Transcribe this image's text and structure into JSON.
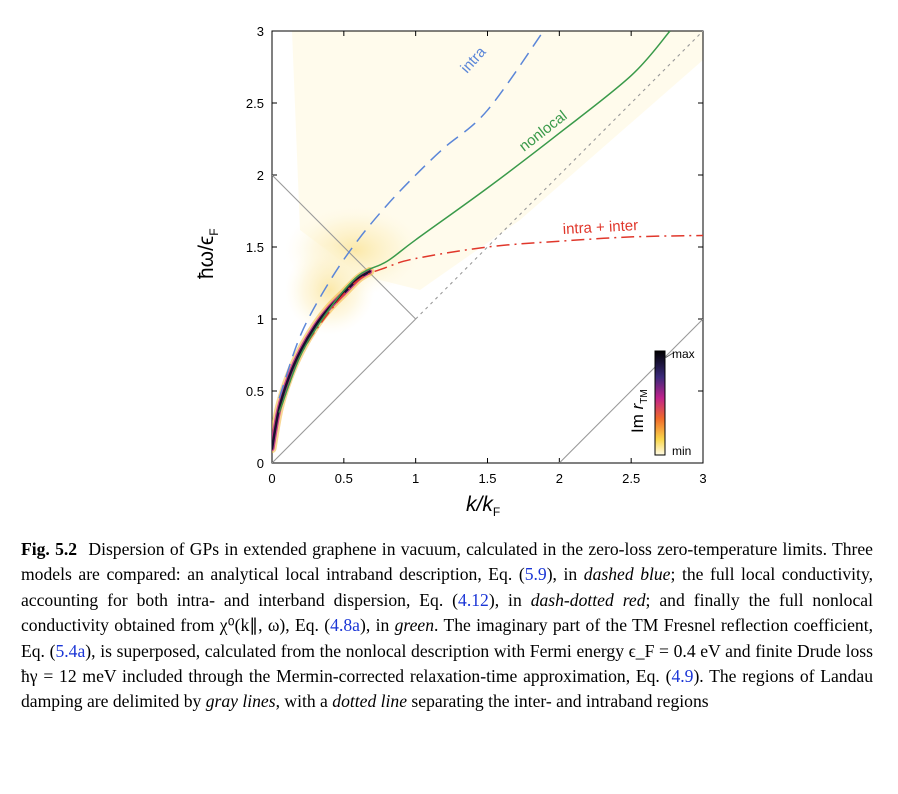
{
  "figure": {
    "axes": {
      "xlabel": "k/k_F",
      "ylabel": "ħω/ϵ_F",
      "xlim": [
        0,
        3
      ],
      "ylim": [
        0,
        3
      ],
      "xticks": [
        "0",
        "0.5",
        "1",
        "1.5",
        "2",
        "2.5",
        "3"
      ],
      "yticks": [
        "0",
        "0.5",
        "1",
        "1.5",
        "2",
        "2.5",
        "3"
      ]
    },
    "curve_labels": {
      "intra": "intra",
      "nonlocal": "nonlocal",
      "intra_inter": "intra + inter"
    },
    "colorbar": {
      "label": "Im r_TM",
      "max_label": "max",
      "min_label": "min"
    },
    "colors": {
      "intra": "#5b86d8",
      "nonlocal": "#3a9a4a",
      "intra_inter": "#e0372b",
      "gray": "#9a9a9a"
    }
  },
  "chart_data": {
    "type": "line",
    "xlabel": "k/k_F",
    "ylabel": "ħω/ϵ_F",
    "xlim": [
      0,
      3
    ],
    "ylim": [
      0,
      3
    ],
    "series": [
      {
        "name": "intra",
        "style": "dashed",
        "color": "#5b86d8",
        "x": [
          0.05,
          0.2,
          0.4,
          0.6,
          0.8,
          1.0,
          1.2,
          1.5,
          1.89
        ],
        "y": [
          0.45,
          0.89,
          1.26,
          1.55,
          1.79,
          2.0,
          2.19,
          2.45,
          3.0
        ]
      },
      {
        "name": "intra + inter",
        "style": "dash-dotted",
        "color": "#e0372b",
        "x": [
          0.05,
          0.2,
          0.4,
          0.6,
          0.8,
          1.0,
          1.5,
          2.0,
          2.5,
          3.0
        ],
        "y": [
          0.35,
          0.75,
          1.05,
          1.27,
          1.36,
          1.42,
          1.5,
          1.54,
          1.57,
          1.58
        ]
      },
      {
        "name": "nonlocal",
        "style": "solid",
        "color": "#3a9a4a",
        "x": [
          0.05,
          0.2,
          0.4,
          0.6,
          0.8,
          1.0,
          1.5,
          2.0,
          2.5,
          2.77
        ],
        "y": [
          0.35,
          0.75,
          1.07,
          1.3,
          1.4,
          1.55,
          1.91,
          2.29,
          2.69,
          3.0
        ]
      },
      {
        "name": "ħω = ħv_F k (dotted)",
        "style": "dotted",
        "color": "#9a9a9a",
        "x": [
          1,
          3
        ],
        "y": [
          1,
          3
        ]
      },
      {
        "name": "ħω = ħv_F k (solid)",
        "style": "solid",
        "color": "#9a9a9a",
        "x": [
          0,
          1
        ],
        "y": [
          0,
          1
        ]
      },
      {
        "name": "ħω = 2ϵ_F − ħv_F k",
        "style": "solid",
        "color": "#9a9a9a",
        "x": [
          0,
          1
        ],
        "y": [
          2,
          1
        ]
      },
      {
        "name": "ħω = ħv_F k − 2ϵ_F",
        "style": "solid",
        "color": "#9a9a9a",
        "x": [
          2,
          3
        ],
        "y": [
          0,
          1
        ]
      }
    ],
    "heatmap": "Im r_TM (nonlocal, min → max)"
  },
  "caption": {
    "fig_number": "Fig. 5.2",
    "s1": "Dispersion of GPs in extended graphene in vacuum, calculated in the zero-loss zero-temperature limits. Three models are compared: an analytical local intraband description, Eq. (",
    "r1": "5.9",
    "s2": "), in ",
    "e1": "dashed blue",
    "s3": "; the full local conductivity, accounting for both intra- and interband dispersion, Eq. (",
    "r2": "4.12",
    "s4": "), in ",
    "e2": "dash-dotted red",
    "s5": "; and finally the full nonlocal conductivity obtained from χ⁰(k∥, ω), Eq. (",
    "r3": "4.8a",
    "s6": "), in ",
    "e3": "green",
    "s7": ". The imaginary part of the TM Fresnel reflection coefficient, Eq. (",
    "r4": "5.4a",
    "s8": "), is superposed, calculated from the nonlocal description with Fermi energy ϵ_F = 0.4 eV and finite Drude loss ħγ = 12 meV included through the Mermin-corrected relaxation-time approximation, Eq. (",
    "r5": "4.9",
    "s9": "). The regions of Landau damping are delimited by ",
    "e4": "gray lines",
    "s10": ", with a ",
    "e5": "dotted line",
    "s11": " separating the inter- and intraband regions"
  }
}
